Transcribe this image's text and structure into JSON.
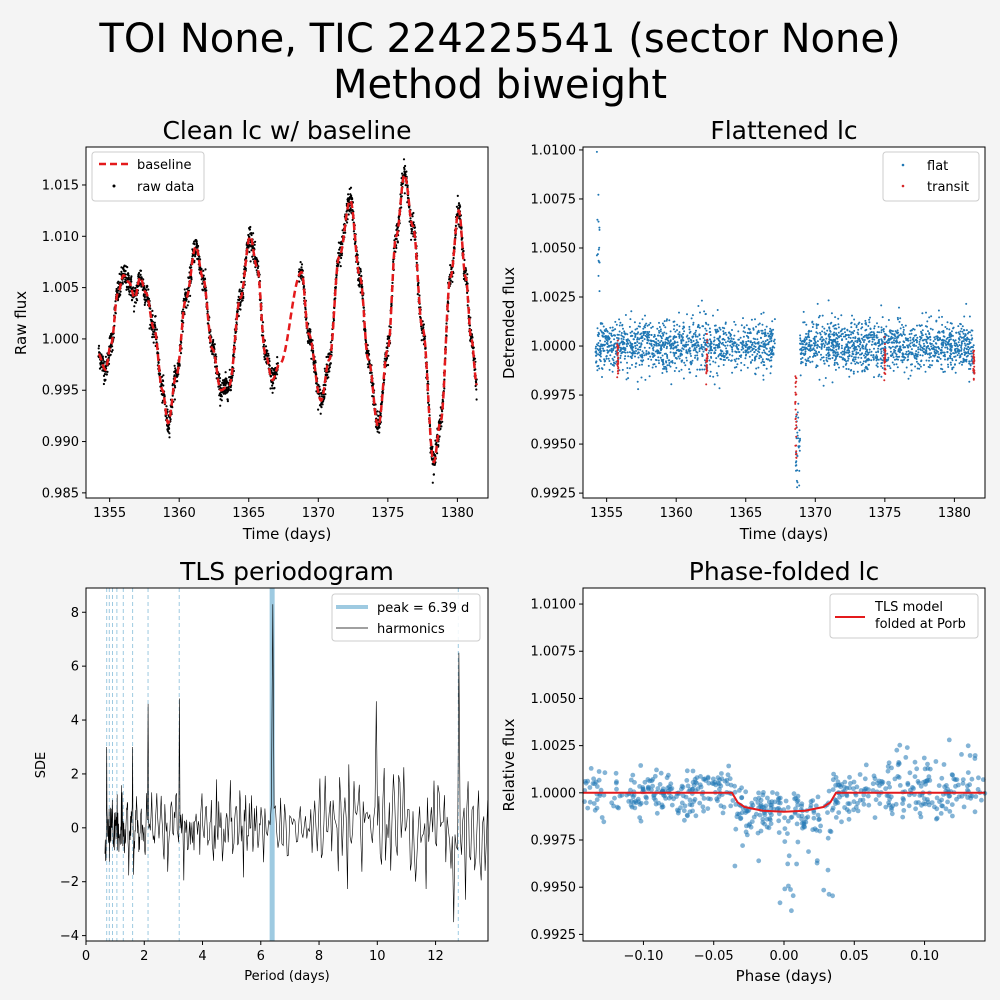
{
  "figure": {
    "title_line1": "TOI None, TIC 224225541 (sector None)",
    "title_line2": "Method biweight"
  },
  "colors": {
    "background": "#f4f4f4",
    "flat": "#1f77b4",
    "transit": "#d62728",
    "baseline": "#e41a1c",
    "raw": "#000000",
    "peak": "#9ecae1",
    "model": "#e41a1c"
  },
  "chart_data": [
    {
      "type": "scatter",
      "title": "Clean lc w/ baseline",
      "xlabel": "Time (days)",
      "ylabel": "Raw flux",
      "xlim": [
        1353.3,
        1382.2
      ],
      "ylim": [
        0.9845,
        1.0187
      ],
      "xticks": [
        1355,
        1360,
        1365,
        1370,
        1375,
        1380
      ],
      "yticks": [
        0.985,
        0.99,
        0.995,
        1.0,
        1.005,
        1.01,
        1.015
      ],
      "ytick_labels": [
        "0.985",
        "0.990",
        "0.995",
        "1.000",
        "1.005",
        "1.010",
        "1.015"
      ],
      "legend": [
        "baseline",
        "raw data"
      ],
      "legend_loc": "upper left",
      "time_range": [
        1354.2,
        1381.4
      ],
      "gap": [
        1367.1,
        1368.6
      ],
      "baseline_knots": [
        [
          1354.2,
          0.9985
        ],
        [
          1354.7,
          0.997
        ],
        [
          1355.1,
          0.9995
        ],
        [
          1355.6,
          1.0045
        ],
        [
          1356.0,
          1.0062
        ],
        [
          1356.4,
          1.0055
        ],
        [
          1356.8,
          1.004
        ],
        [
          1357.2,
          1.006
        ],
        [
          1357.6,
          1.0045
        ],
        [
          1358.2,
          1.001
        ],
        [
          1358.8,
          0.995
        ],
        [
          1359.2,
          0.9918
        ],
        [
          1359.8,
          0.9965
        ],
        [
          1360.5,
          1.004
        ],
        [
          1361.2,
          1.009
        ],
        [
          1361.7,
          1.006
        ],
        [
          1362.4,
          0.999
        ],
        [
          1363.0,
          0.995
        ],
        [
          1363.6,
          0.9955
        ],
        [
          1364.4,
          1.004
        ],
        [
          1365.1,
          1.01
        ],
        [
          1365.6,
          1.007
        ],
        [
          1366.2,
          0.9985
        ],
        [
          1366.7,
          0.996
        ],
        [
          1367.2,
          0.9975
        ],
        [
          1368.8,
          1.0065
        ],
        [
          1369.3,
          1.0005
        ],
        [
          1370.2,
          0.994
        ],
        [
          1370.8,
          0.998
        ],
        [
          1371.5,
          1.008
        ],
        [
          1372.3,
          1.0135
        ],
        [
          1373.0,
          1.006
        ],
        [
          1373.6,
          0.998
        ],
        [
          1374.3,
          0.9915
        ],
        [
          1375.0,
          0.999
        ],
        [
          1375.6,
          1.01
        ],
        [
          1376.2,
          1.016
        ],
        [
          1376.8,
          1.011
        ],
        [
          1377.5,
          1.001
        ],
        [
          1378.3,
          0.988
        ],
        [
          1378.8,
          0.992
        ],
        [
          1379.5,
          1.006
        ],
        [
          1380.1,
          1.0125
        ],
        [
          1380.6,
          1.006
        ],
        [
          1381.0,
          1.0
        ],
        [
          1381.4,
          0.9955
        ]
      ]
    },
    {
      "type": "scatter",
      "title": "Flattened lc",
      "xlabel": "Time (days)",
      "ylabel": "Detrended flux",
      "xlim": [
        1353.3,
        1382.2
      ],
      "ylim": [
        0.99225,
        1.01015
      ],
      "xticks": [
        1355,
        1360,
        1365,
        1370,
        1375,
        1380
      ],
      "yticks": [
        0.9925,
        0.995,
        0.9975,
        1.0,
        1.0025,
        1.005,
        1.0075,
        1.01
      ],
      "ytick_labels": [
        "0.9925",
        "0.9950",
        "0.9975",
        "1.0000",
        "1.0025",
        "1.0050",
        "1.0075",
        "1.0100"
      ],
      "legend": [
        "flat",
        "transit"
      ],
      "legend_loc": "upper right",
      "transit_times": [
        1355.8,
        1362.2,
        1368.6,
        1375.0,
        1381.4
      ],
      "transit_depth": 0.001
    },
    {
      "type": "line",
      "title": "TLS periodogram",
      "xlabel": "Period (days)",
      "ylabel": "SDE",
      "xlim": [
        0,
        13.8
      ],
      "ylim": [
        -4.2,
        8.9
      ],
      "xticks": [
        0,
        2,
        4,
        6,
        8,
        10,
        12
      ],
      "yticks": [
        -4,
        -2,
        0,
        2,
        4,
        6,
        8
      ],
      "legend": [
        "peak = 6.39 d",
        "harmonics"
      ],
      "legend_loc": "upper right",
      "peak_period": 6.39,
      "peak_sde": 8.3,
      "harmonics": [
        0.71,
        0.8,
        0.91,
        1.06,
        1.28,
        1.6,
        2.13,
        3.2,
        12.78
      ],
      "notable_peaks": [
        [
          0.71,
          3.0
        ],
        [
          1.6,
          3.0
        ],
        [
          2.13,
          4.6
        ],
        [
          3.2,
          4.8
        ],
        [
          9.98,
          4.7
        ],
        [
          12.78,
          6.5
        ],
        [
          12.6,
          -3.5
        ]
      ]
    },
    {
      "type": "scatter",
      "title": "Phase-folded lc",
      "xlabel": "Phase (days)",
      "ylabel": "Relative flux",
      "xlim": [
        -0.143,
        0.143
      ],
      "ylim": [
        0.99215,
        1.01085
      ],
      "xticks": [
        -0.1,
        -0.05,
        0.0,
        0.05,
        0.1
      ],
      "xtick_labels": [
        "−0.10",
        "−0.05",
        "0.00",
        "0.05",
        "0.10"
      ],
      "yticks": [
        0.9925,
        0.995,
        0.9975,
        1.0,
        1.0025,
        1.005,
        1.0075,
        1.01
      ],
      "ytick_labels": [
        "0.9925",
        "0.9950",
        "0.9975",
        "1.0000",
        "1.0025",
        "1.0050",
        "1.0075",
        "1.0100"
      ],
      "legend": [
        "TLS model",
        "folded at Porb"
      ],
      "legend_loc": "upper right",
      "model": [
        [
          -0.143,
          1.0
        ],
        [
          -0.037,
          1.0
        ],
        [
          -0.033,
          0.9995
        ],
        [
          -0.028,
          0.99925
        ],
        [
          -0.015,
          0.99905
        ],
        [
          0.0,
          0.999
        ],
        [
          0.015,
          0.99905
        ],
        [
          0.028,
          0.99925
        ],
        [
          0.033,
          0.9995
        ],
        [
          0.037,
          1.0
        ],
        [
          0.143,
          1.0
        ]
      ]
    }
  ]
}
